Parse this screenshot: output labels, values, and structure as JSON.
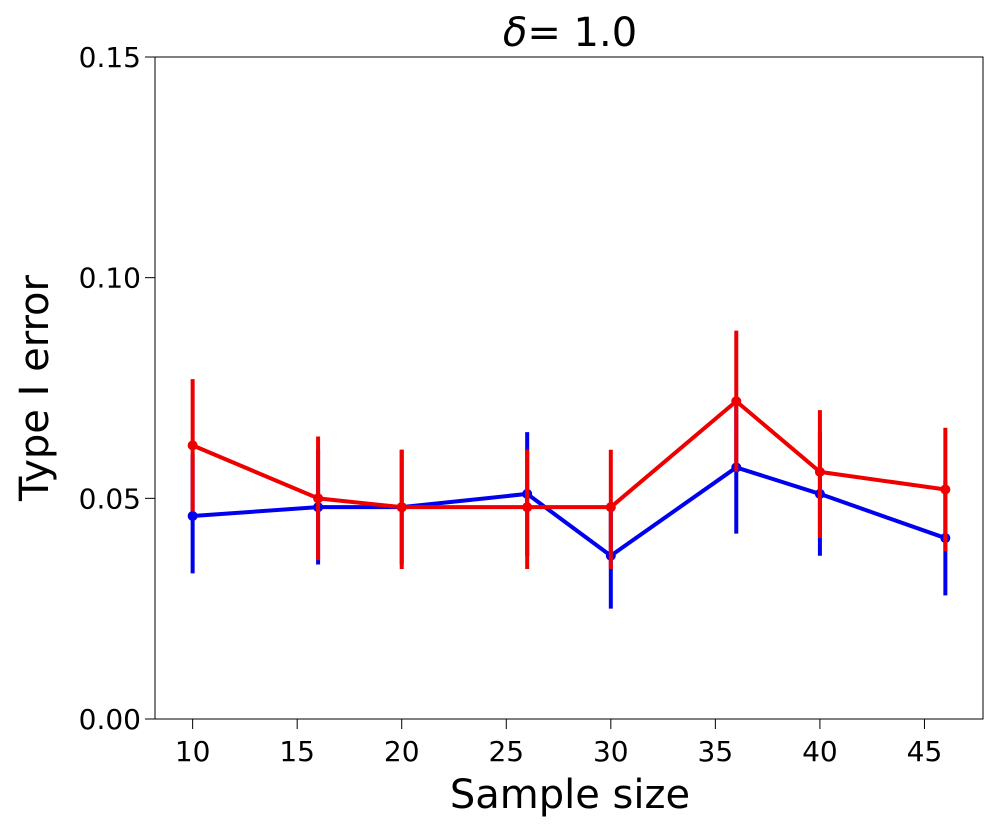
{
  "chart_data": {
    "type": "line",
    "title_symbol": "δ",
    "title_value": "= 1.0",
    "xlabel": "Sample size",
    "ylabel": "Type I error",
    "xlim": [
      8.2,
      47.8
    ],
    "ylim": [
      0.0,
      0.15
    ],
    "xticks": [
      "10",
      "15",
      "20",
      "25",
      "30",
      "35",
      "40",
      "45"
    ],
    "yticks": [
      "0.00",
      "0.05",
      "0.10",
      "0.15"
    ],
    "x": [
      10,
      16,
      20,
      26,
      30,
      36,
      40,
      46
    ],
    "series": [
      {
        "name": "blue",
        "color": "#0000ee",
        "values": [
          0.046,
          0.048,
          0.048,
          0.051,
          0.037,
          0.057,
          0.051,
          0.041
        ],
        "err_low": [
          0.033,
          0.035,
          0.035,
          0.037,
          0.025,
          0.042,
          0.037,
          0.028
        ],
        "err_high": [
          0.06,
          0.061,
          0.061,
          0.065,
          0.049,
          0.071,
          0.065,
          0.054
        ]
      },
      {
        "name": "red",
        "color": "#ee0000",
        "values": [
          0.062,
          0.05,
          0.048,
          0.048,
          0.048,
          0.072,
          0.056,
          0.052
        ],
        "err_low": [
          0.047,
          0.036,
          0.034,
          0.034,
          0.034,
          0.056,
          0.041,
          0.038
        ],
        "err_high": [
          0.077,
          0.064,
          0.061,
          0.061,
          0.061,
          0.088,
          0.07,
          0.066
        ]
      }
    ]
  }
}
